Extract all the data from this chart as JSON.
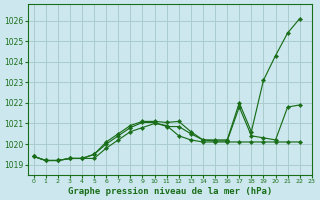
{
  "title": "Graphe pression niveau de la mer (hPa)",
  "background_color": "#cce8ee",
  "grid_color": "#aacccc",
  "line_color": "#1a6e1a",
  "xlim": [
    -0.5,
    23
  ],
  "ylim": [
    1018.5,
    1026.8
  ],
  "yticks": [
    1019,
    1020,
    1021,
    1022,
    1023,
    1024,
    1025,
    1026
  ],
  "xticks": [
    0,
    1,
    2,
    3,
    4,
    5,
    6,
    7,
    8,
    9,
    10,
    11,
    12,
    13,
    14,
    15,
    16,
    17,
    18,
    19,
    20,
    21,
    22,
    23
  ],
  "series": [
    {
      "x": [
        0,
        1,
        2,
        3,
        4,
        5,
        6,
        7,
        8,
        9,
        10,
        11,
        12,
        13,
        14,
        15,
        16,
        17,
        18,
        19,
        20,
        21,
        22
      ],
      "y": [
        1019.4,
        1019.2,
        1019.2,
        1019.3,
        1019.3,
        1019.3,
        1019.8,
        1020.2,
        1020.6,
        1020.8,
        1021.0,
        1020.9,
        1020.4,
        1020.2,
        1020.1,
        1020.1,
        1020.1,
        1020.1,
        1020.1,
        1020.1,
        1020.1,
        1020.1,
        1020.1
      ],
      "marker": true
    },
    {
      "x": [
        0,
        1,
        2,
        3,
        4,
        5,
        6,
        7,
        8,
        9,
        10,
        11,
        12,
        13,
        14,
        15,
        16,
        17,
        18,
        19,
        20,
        21,
        22
      ],
      "y": [
        1019.4,
        1019.2,
        1019.2,
        1019.3,
        1019.3,
        1019.5,
        1020.0,
        1020.4,
        1020.8,
        1021.05,
        1021.05,
        1020.85,
        1020.85,
        1020.5,
        1020.2,
        1020.15,
        1020.15,
        1021.8,
        1020.4,
        1020.3,
        1020.2,
        1021.8,
        1021.9
      ],
      "marker": true
    },
    {
      "x": [
        0,
        1,
        2,
        3,
        4,
        5,
        6,
        7,
        8,
        9,
        10,
        11,
        12,
        13,
        14,
        15,
        16,
        17,
        18,
        19,
        20,
        21,
        22
      ],
      "y": [
        1019.4,
        1019.2,
        1019.2,
        1019.3,
        1019.3,
        1019.5,
        1020.1,
        1020.5,
        1020.9,
        1021.1,
        1021.1,
        1021.05,
        1021.1,
        1020.6,
        1020.2,
        1020.2,
        1020.2,
        1022.0,
        1020.6,
        1023.1,
        1024.3,
        1025.4,
        1026.1
      ],
      "marker": true
    }
  ]
}
